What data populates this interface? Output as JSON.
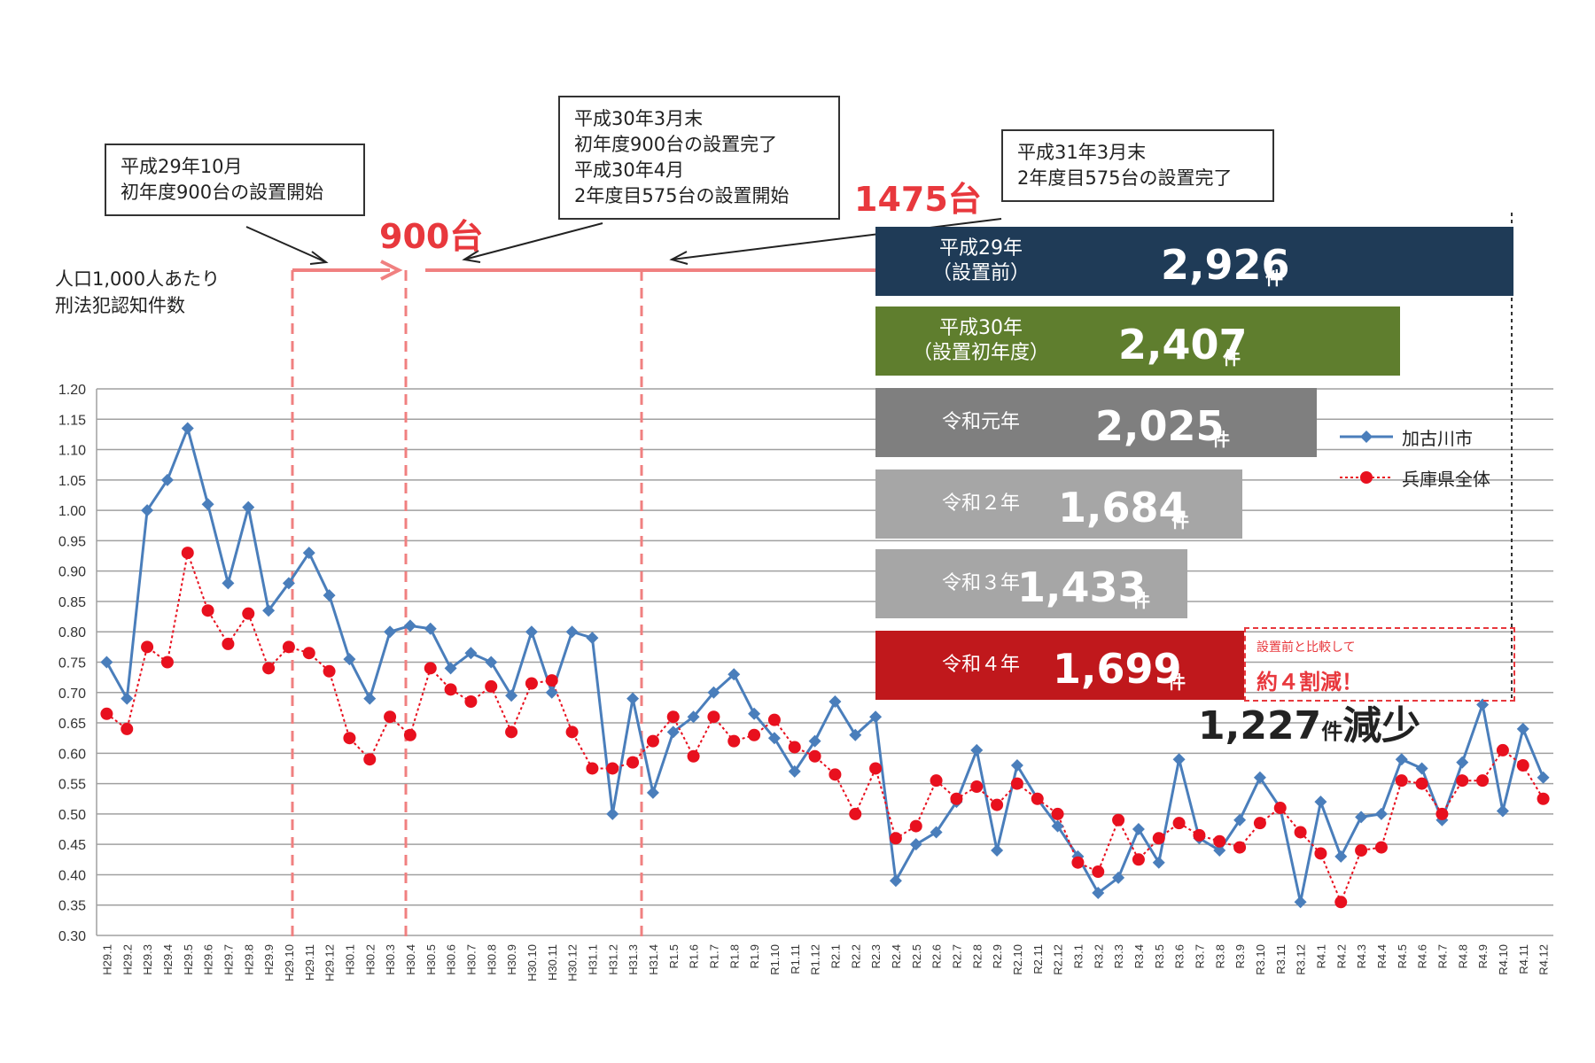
{
  "callouts": [
    {
      "lines": [
        "平成29年10月",
        "初年度900台の設置開始"
      ]
    },
    {
      "lines": [
        "平成30年3月末",
        "初年度900台の設置完了",
        "平成30年4月",
        "2年度目575台の設置開始"
      ]
    },
    {
      "lines": [
        "平成31年3月末",
        "2年度目575台の設置完了"
      ]
    }
  ],
  "installs": [
    "900台",
    "1475台"
  ],
  "y_axis_label": [
    "人口1,000人あたり",
    "刑法犯認知件数"
  ],
  "year_totals": [
    {
      "label": [
        "平成29年",
        "（設置前）"
      ],
      "count": "2,926",
      "unit": "件",
      "color": "#1f3b57"
    },
    {
      "label": [
        "平成30年",
        "（設置初年度）"
      ],
      "count": "2,407",
      "unit": "件",
      "color": "#5f7e2e"
    },
    {
      "label": [
        "令和元年"
      ],
      "count": "2,025",
      "unit": "件",
      "color": "#7f7f7f"
    },
    {
      "label": [
        "令和２年"
      ],
      "count": "1,684",
      "unit": "件",
      "color": "#a6a6a6"
    },
    {
      "label": [
        "令和３年"
      ],
      "count": "1,433",
      "unit": "件",
      "color": "#a6a6a6"
    },
    {
      "label": [
        "令和４年"
      ],
      "count": "1,699",
      "unit": "件",
      "color": "#c0181c"
    }
  ],
  "reduction": {
    "note": "設置前と比較して",
    "main": "約４割減！"
  },
  "decrease": {
    "count": "1,227",
    "unit": "件",
    "suffix": "減少"
  },
  "legend": [
    "加古川市",
    "兵庫県全体"
  ],
  "chart_data": {
    "type": "line",
    "ylim": [
      0.3,
      1.2
    ],
    "yticks": [
      "1.20",
      "1.15",
      "1.10",
      "1.05",
      "1.00",
      "0.95",
      "0.90",
      "0.85",
      "0.80",
      "0.75",
      "0.70",
      "0.65",
      "0.60",
      "0.55",
      "0.50",
      "0.45",
      "0.40",
      "0.35",
      "0.30"
    ],
    "categories": [
      "H29.1",
      "H29.2",
      "H29.3",
      "H29.4",
      "H29.5",
      "H29.6",
      "H29.7",
      "H29.8",
      "H29.9",
      "H29.10",
      "H29.11",
      "H29.12",
      "H30.1",
      "H30.2",
      "H30.3",
      "H30.4",
      "H30.5",
      "H30.6",
      "H30.7",
      "H30.8",
      "H30.9",
      "H30.10",
      "H30.11",
      "H30.12",
      "H31.1",
      "H31.2",
      "H31.3",
      "H31.4",
      "R1.5",
      "R1.6",
      "R1.7",
      "R1.8",
      "R1.9",
      "R1.10",
      "R1.11",
      "R1.12",
      "R2.1",
      "R2.2",
      "R2.3",
      "R2.4",
      "R2.5",
      "R2.6",
      "R2.7",
      "R2.8",
      "R2.9",
      "R2.10",
      "R2.11",
      "R2.12",
      "R3.1",
      "R3.2",
      "R3.3",
      "R3.4",
      "R3.5",
      "R3.6",
      "R3.7",
      "R3.8",
      "R3.9",
      "R3.10",
      "R3.11",
      "R3.12",
      "R4.1",
      "R4.2",
      "R4.3",
      "R4.4",
      "R4.5",
      "R4.6",
      "R4.7",
      "R4.8",
      "R4.9",
      "R4.10",
      "R4.11",
      "R4.12"
    ],
    "series": [
      {
        "name": "加古川市",
        "color": "#4a7ebb",
        "style": "solid",
        "marker": "diamond",
        "values": [
          0.75,
          0.69,
          1.0,
          1.05,
          1.135,
          1.01,
          0.88,
          1.005,
          0.835,
          0.88,
          0.93,
          0.86,
          0.755,
          0.69,
          0.8,
          0.81,
          0.805,
          0.74,
          0.765,
          0.75,
          0.695,
          0.8,
          0.7,
          0.8,
          0.79,
          0.5,
          0.69,
          0.535,
          0.635,
          0.66,
          0.7,
          0.73,
          0.665,
          0.625,
          0.57,
          0.62,
          0.685,
          0.63,
          0.66,
          0.39,
          0.45,
          0.47,
          0.52,
          0.605,
          0.44,
          0.58,
          0.525,
          0.48,
          0.43,
          0.37,
          0.395,
          0.475,
          0.42,
          0.59,
          0.46,
          0.44,
          0.49,
          0.56,
          0.51,
          0.355,
          0.52,
          0.43,
          0.495,
          0.5,
          0.59,
          0.575,
          0.49,
          0.585,
          0.68,
          0.505,
          0.64,
          0.56
        ]
      },
      {
        "name": "兵庫県全体",
        "color": "#e8101e",
        "style": "dotted",
        "marker": "circle",
        "values": [
          0.665,
          0.64,
          0.775,
          0.75,
          0.93,
          0.835,
          0.78,
          0.83,
          0.74,
          0.775,
          0.765,
          0.735,
          0.625,
          0.59,
          0.66,
          0.63,
          0.74,
          0.705,
          0.685,
          0.71,
          0.635,
          0.715,
          0.72,
          0.635,
          0.575,
          0.575,
          0.585,
          0.62,
          0.66,
          0.595,
          0.66,
          0.62,
          0.63,
          0.655,
          0.61,
          0.595,
          0.565,
          0.5,
          0.575,
          0.46,
          0.48,
          0.555,
          0.525,
          0.545,
          0.515,
          0.55,
          0.525,
          0.5,
          0.42,
          0.405,
          0.49,
          0.425,
          0.46,
          0.485,
          0.465,
          0.455,
          0.445,
          0.485,
          0.51,
          0.47,
          0.435,
          0.355,
          0.44,
          0.445,
          0.555,
          0.55,
          0.5,
          0.555,
          0.555,
          0.605,
          0.58,
          0.525
        ]
      }
    ]
  }
}
